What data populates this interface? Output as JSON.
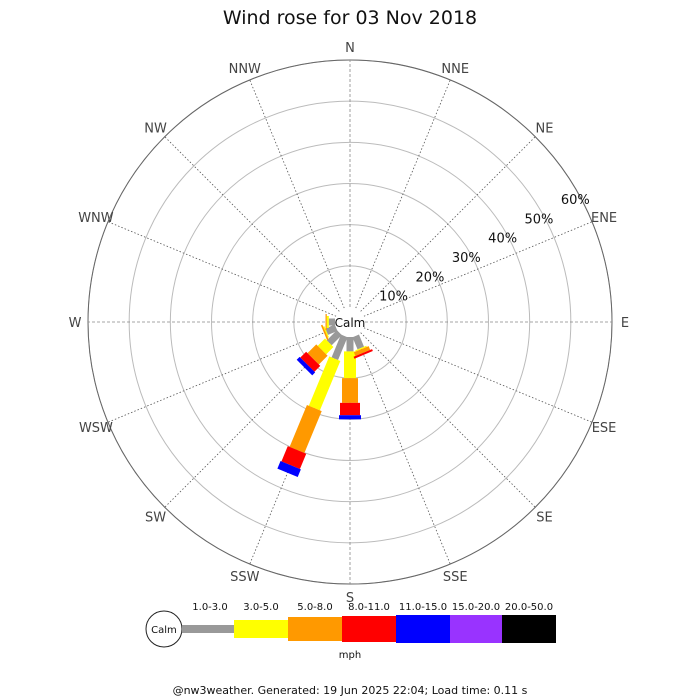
{
  "title": "Wind rose for 03 Nov 2018",
  "calm_label": "Calm",
  "unit": "mph",
  "footer": "@nw3weather. Generated: 19 Jun 2025 22:04; Load time: 0.11 s",
  "chart_data": {
    "type": "wind-rose",
    "title": "Wind rose for 03 Nov 2018",
    "directions": [
      "N",
      "NNE",
      "NE",
      "ENE",
      "E",
      "ESE",
      "SE",
      "SSE",
      "S",
      "SSW",
      "SW",
      "WSW",
      "W",
      "WNW",
      "NW",
      "NNW"
    ],
    "radial_ticks": [
      "10%",
      "20%",
      "30%",
      "40%",
      "50%",
      "60%"
    ],
    "radial_max": 60,
    "bins": [
      {
        "label": "1.0-3.0",
        "color": "#999999"
      },
      {
        "label": "3.0-5.0",
        "color": "#ffff00"
      },
      {
        "label": "5.0-8.0",
        "color": "#ff9900"
      },
      {
        "label": "8.0-11.0",
        "color": "#ff0000"
      },
      {
        "label": "11.0-15.0",
        "color": "#0000ff"
      },
      {
        "label": "15.0-20.0",
        "color": "#9933ff"
      },
      {
        "label": "20.0-50.0",
        "color": "#000000"
      }
    ],
    "cumulative_percent": {
      "S": [
        3.5,
        10,
        16,
        19,
        20
      ],
      "SSE": [
        3.2,
        3.5,
        4.5,
        5
      ],
      "SSW": [
        6,
        19,
        30,
        34,
        36
      ],
      "SW": [
        3.5,
        6,
        9,
        11,
        12
      ],
      "WSW": [
        2.5,
        2.8,
        3.2
      ],
      "W": [
        1.5,
        2,
        2.3
      ]
    },
    "legend_unit": "mph"
  }
}
